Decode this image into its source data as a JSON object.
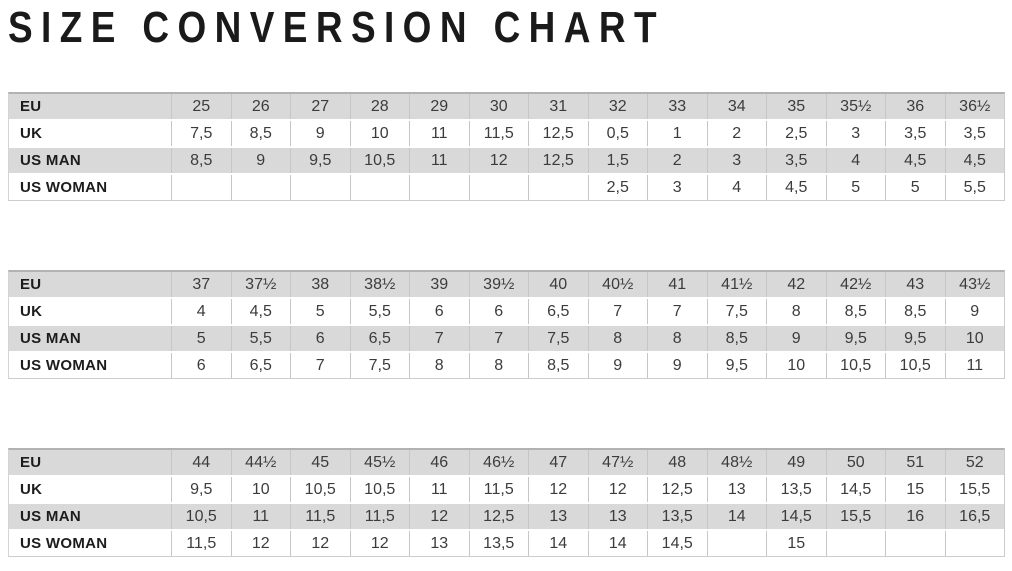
{
  "colors": {
    "background": "#ffffff",
    "title_text": "#1a1a1a",
    "shaded_row": "#d9d9d9",
    "cell_border": "#c6c6c6",
    "table_top_border": "#b2b2b2",
    "label_text": "#1c1c1c",
    "value_text": "#3c3c3c"
  },
  "chart_data": {
    "type": "table",
    "title": "SIZE CONVERSION CHART",
    "row_headers": [
      "EU",
      "UK",
      "US MAN",
      "US WOMAN"
    ],
    "tables": [
      {
        "rows": [
          {
            "label": "EU",
            "values": [
              "25",
              "26",
              "27",
              "28",
              "29",
              "30",
              "31",
              "32",
              "33",
              "34",
              "35",
              "35½",
              "36",
              "36½"
            ]
          },
          {
            "label": "UK",
            "values": [
              "7,5",
              "8,5",
              "9",
              "10",
              "11",
              "11,5",
              "12,5",
              "0,5",
              "1",
              "2",
              "2,5",
              "3",
              "3,5",
              "3,5"
            ]
          },
          {
            "label": "US MAN",
            "values": [
              "8,5",
              "9",
              "9,5",
              "10,5",
              "11",
              "12",
              "12,5",
              "1,5",
              "2",
              "3",
              "3,5",
              "4",
              "4,5",
              "4,5"
            ]
          },
          {
            "label": "US WOMAN",
            "values": [
              "",
              "",
              "",
              "",
              "",
              "",
              "",
              "2,5",
              "3",
              "4",
              "4,5",
              "5",
              "5",
              "5,5"
            ]
          }
        ]
      },
      {
        "rows": [
          {
            "label": "EU",
            "values": [
              "37",
              "37½",
              "38",
              "38½",
              "39",
              "39½",
              "40",
              "40½",
              "41",
              "41½",
              "42",
              "42½",
              "43",
              "43½"
            ]
          },
          {
            "label": "UK",
            "values": [
              "4",
              "4,5",
              "5",
              "5,5",
              "6",
              "6",
              "6,5",
              "7",
              "7",
              "7,5",
              "8",
              "8,5",
              "8,5",
              "9"
            ]
          },
          {
            "label": "US MAN",
            "values": [
              "5",
              "5,5",
              "6",
              "6,5",
              "7",
              "7",
              "7,5",
              "8",
              "8",
              "8,5",
              "9",
              "9,5",
              "9,5",
              "10"
            ]
          },
          {
            "label": "US WOMAN",
            "values": [
              "6",
              "6,5",
              "7",
              "7,5",
              "8",
              "8",
              "8,5",
              "9",
              "9",
              "9,5",
              "10",
              "10,5",
              "10,5",
              "11"
            ]
          }
        ]
      },
      {
        "rows": [
          {
            "label": "EU",
            "values": [
              "44",
              "44½",
              "45",
              "45½",
              "46",
              "46½",
              "47",
              "47½",
              "48",
              "48½",
              "49",
              "50",
              "51",
              "52"
            ]
          },
          {
            "label": "UK",
            "values": [
              "9,5",
              "10",
              "10,5",
              "10,5",
              "11",
              "11,5",
              "12",
              "12",
              "12,5",
              "13",
              "13,5",
              "14,5",
              "15",
              "15,5"
            ]
          },
          {
            "label": "US MAN",
            "values": [
              "10,5",
              "11",
              "11,5",
              "11,5",
              "12",
              "12,5",
              "13",
              "13",
              "13,5",
              "14",
              "14,5",
              "15,5",
              "16",
              "16,5"
            ]
          },
          {
            "label": "US WOMAN",
            "values": [
              "11,5",
              "12",
              "12",
              "12",
              "13",
              "13,5",
              "14",
              "14",
              "14,5",
              "",
              "15",
              "",
              "",
              ""
            ]
          }
        ]
      }
    ]
  }
}
